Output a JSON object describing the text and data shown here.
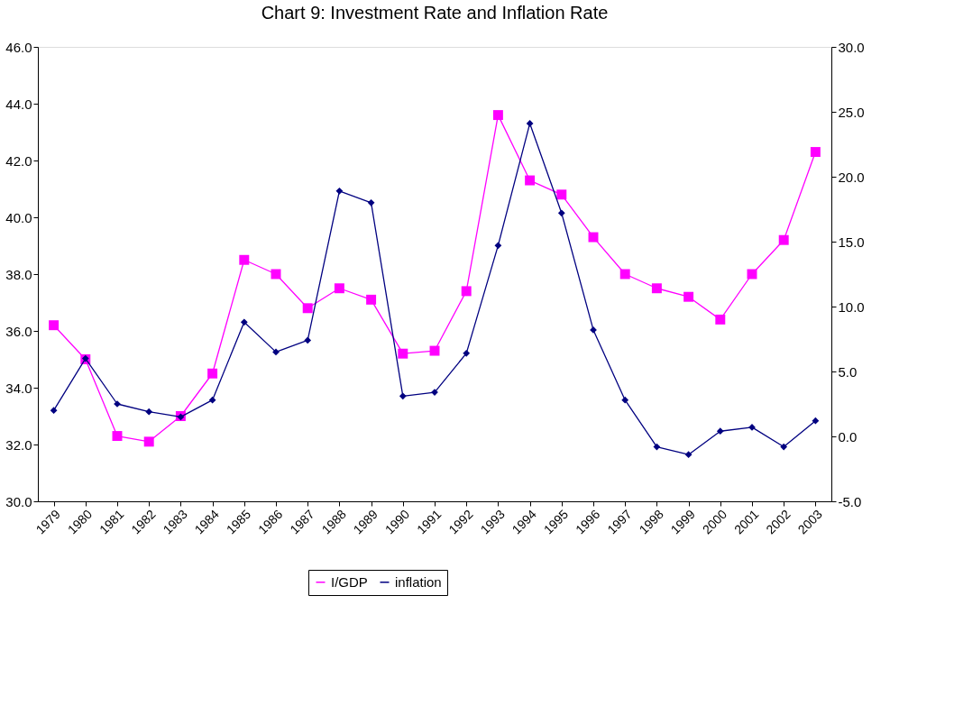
{
  "chart_data": {
    "type": "line",
    "title": "Chart 9: Investment Rate and Inflation Rate",
    "categories": [
      "1979",
      "1980",
      "1981",
      "1982",
      "1983",
      "1984",
      "1985",
      "1986",
      "1987",
      "1988",
      "1989",
      "1990",
      "1991",
      "1992",
      "1993",
      "1994",
      "1995",
      "1996",
      "1997",
      "1998",
      "1999",
      "2000",
      "2001",
      "2002",
      "2003"
    ],
    "series": [
      {
        "name": "I/GDP",
        "color": "#ff00ff",
        "marker": "square",
        "axis": "y",
        "values": [
          36.2,
          35.0,
          32.3,
          32.1,
          33.0,
          34.5,
          38.5,
          38.0,
          36.8,
          37.5,
          37.1,
          35.2,
          35.3,
          37.4,
          43.6,
          41.3,
          40.8,
          39.3,
          38.0,
          37.5,
          37.2,
          36.4,
          38.0,
          39.2,
          42.3
        ]
      },
      {
        "name": "inflation",
        "color": "#000080",
        "marker": "diamond",
        "axis": "y2",
        "values": [
          2.0,
          6.0,
          2.5,
          1.9,
          1.5,
          2.8,
          8.8,
          6.5,
          7.4,
          18.9,
          18.0,
          3.1,
          3.4,
          6.4,
          14.7,
          24.1,
          17.2,
          8.2,
          2.8,
          -0.8,
          -1.4,
          0.4,
          0.7,
          -0.8,
          1.2
        ]
      }
    ],
    "ylim": [
      30,
      46
    ],
    "yticks": [
      {
        "value": 30,
        "label": "30.0"
      },
      {
        "value": 32,
        "label": "32.0"
      },
      {
        "value": 34,
        "label": "34.0"
      },
      {
        "value": 36,
        "label": "36.0"
      },
      {
        "value": 38,
        "label": "38.0"
      },
      {
        "value": 40,
        "label": "40.0"
      },
      {
        "value": 42,
        "label": "42.0"
      },
      {
        "value": 44,
        "label": "44.0"
      },
      {
        "value": 46,
        "label": "46.0"
      }
    ],
    "y2lim": [
      -5,
      30
    ],
    "y2ticks": [
      {
        "value": -5,
        "label": "-5.0"
      },
      {
        "value": 0,
        "label": "0.0"
      },
      {
        "value": 5,
        "label": "5.0"
      },
      {
        "value": 10,
        "label": "10.0"
      },
      {
        "value": 15,
        "label": "15.0"
      },
      {
        "value": 20,
        "label": "20.0"
      },
      {
        "value": 25,
        "label": "25.0"
      },
      {
        "value": 30,
        "label": "30.0"
      }
    ],
    "grid": false,
    "legend": "bottom",
    "line_style": "solid"
  }
}
